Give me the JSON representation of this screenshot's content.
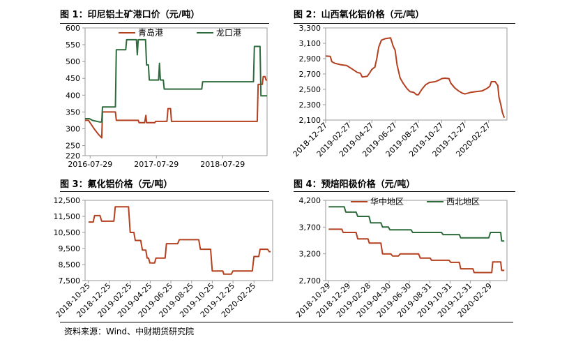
{
  "chart_data": [
    {
      "id": "fig1",
      "type": "line",
      "title_num": "图 1：",
      "title": "印尼铝土矿港口价（元/吨）",
      "ylim": [
        220,
        600
      ],
      "yticks": [
        220,
        250,
        300,
        350,
        400,
        450,
        500,
        550,
        600
      ],
      "ytick_labels": [
        "220",
        "250",
        "300",
        "350",
        "400",
        "450",
        "500",
        "550",
        "600"
      ],
      "xlim": [
        "2016-07-01",
        "2019-03-31"
      ],
      "x_tick_labels": [
        "2016-07-29",
        "2017-07-29",
        "2018-07-29"
      ],
      "x_tick_values": [
        "2016-07-29",
        "2017-07-29",
        "2018-07-29"
      ],
      "series": [
        {
          "name": "青岛港",
          "color": "#b3401f",
          "points": [
            [
              "2016-07-01",
              325
            ],
            [
              "2016-07-20",
              325
            ],
            [
              "2016-08-20",
              300
            ],
            [
              "2016-09-10",
              285
            ],
            [
              "2016-10-01",
              273
            ],
            [
              "2016-10-05",
              350
            ],
            [
              "2016-12-15",
              350
            ],
            [
              "2016-12-20",
              325
            ],
            [
              "2017-04-20",
              325
            ],
            [
              "2017-04-25",
              318
            ],
            [
              "2017-05-25",
              318
            ],
            [
              "2017-06-01",
              340
            ],
            [
              "2017-06-05",
              318
            ],
            [
              "2017-07-20",
              318
            ],
            [
              "2017-07-25",
              322
            ],
            [
              "2017-09-25",
              322
            ],
            [
              "2017-10-01",
              360
            ],
            [
              "2017-10-15",
              360
            ],
            [
              "2017-10-20",
              322
            ],
            [
              "2019-02-05",
              322
            ],
            [
              "2019-02-10",
              432
            ],
            [
              "2019-03-05",
              432
            ],
            [
              "2019-03-10",
              455
            ],
            [
              "2019-03-20",
              455
            ],
            [
              "2019-03-25",
              445
            ],
            [
              "2019-03-31",
              445
            ]
          ]
        },
        {
          "name": "龙口港",
          "color": "#2e6b3c",
          "points": [
            [
              "2016-07-01",
              330
            ],
            [
              "2016-07-25",
              330
            ],
            [
              "2016-08-10",
              325
            ],
            [
              "2016-09-20",
              320
            ],
            [
              "2016-10-01",
              320
            ],
            [
              "2016-10-05",
              365
            ],
            [
              "2016-12-15",
              365
            ],
            [
              "2016-12-20",
              535
            ],
            [
              "2017-02-10",
              535
            ],
            [
              "2017-02-15",
              565
            ],
            [
              "2017-04-10",
              565
            ],
            [
              "2017-04-15",
              520
            ],
            [
              "2017-04-20",
              565
            ],
            [
              "2017-05-30",
              565
            ],
            [
              "2017-06-05",
              490
            ],
            [
              "2017-06-15",
              490
            ],
            [
              "2017-06-20",
              445
            ],
            [
              "2017-08-10",
              445
            ],
            [
              "2017-08-15",
              495
            ],
            [
              "2017-08-20",
              445
            ],
            [
              "2017-09-05",
              445
            ],
            [
              "2017-09-10",
              418
            ],
            [
              "2018-04-05",
              418
            ],
            [
              "2018-04-10",
              440
            ],
            [
              "2019-01-15",
              440
            ],
            [
              "2019-01-20",
              545
            ],
            [
              "2019-02-20",
              545
            ],
            [
              "2019-02-25",
              398
            ],
            [
              "2019-03-31",
              398
            ]
          ]
        }
      ]
    },
    {
      "id": "fig2",
      "type": "line",
      "title_num": "图 2：",
      "title": "山西氧化铝价格（元/吨）",
      "ylim": [
        2100,
        3300
      ],
      "yticks": [
        2100,
        2300,
        2500,
        2700,
        2900,
        3100,
        3300
      ],
      "ytick_labels": [
        "2,100",
        "2,300",
        "2,500",
        "2,700",
        "2,900",
        "3,100",
        "3,300"
      ],
      "xlim": [
        "2018-12-27",
        "2020-04-15"
      ],
      "x_tick_labels": [
        "2018-12-27",
        "2019-02-27",
        "2019-04-27",
        "2019-06-27",
        "2019-08-27",
        "2019-10-27",
        "2019-12-27",
        "2020-02-27"
      ],
      "x_tick_values": [
        "2018-12-27",
        "2019-02-27",
        "2019-04-27",
        "2019-06-27",
        "2019-08-27",
        "2019-10-27",
        "2019-12-27",
        "2020-02-27"
      ],
      "series": [
        {
          "name": "",
          "color": "#b3401f",
          "points": [
            [
              "2018-12-27",
              2935
            ],
            [
              "2019-01-08",
              2930
            ],
            [
              "2019-01-12",
              2860
            ],
            [
              "2019-01-20",
              2840
            ],
            [
              "2019-02-05",
              2820
            ],
            [
              "2019-02-20",
              2810
            ],
            [
              "2019-03-05",
              2770
            ],
            [
              "2019-03-20",
              2720
            ],
            [
              "2019-03-28",
              2710
            ],
            [
              "2019-04-02",
              2660
            ],
            [
              "2019-04-15",
              2670
            ],
            [
              "2019-04-22",
              2720
            ],
            [
              "2019-04-27",
              2760
            ],
            [
              "2019-05-05",
              2790
            ],
            [
              "2019-05-10",
              2900
            ],
            [
              "2019-05-15",
              3050
            ],
            [
              "2019-05-22",
              3140
            ],
            [
              "2019-06-01",
              3160
            ],
            [
              "2019-06-15",
              3170
            ],
            [
              "2019-06-22",
              3060
            ],
            [
              "2019-06-27",
              3010
            ],
            [
              "2019-07-02",
              2820
            ],
            [
              "2019-07-10",
              2650
            ],
            [
              "2019-07-18",
              2580
            ],
            [
              "2019-07-28",
              2510
            ],
            [
              "2019-08-05",
              2470
            ],
            [
              "2019-08-15",
              2460
            ],
            [
              "2019-08-22",
              2430
            ],
            [
              "2019-08-27",
              2430
            ],
            [
              "2019-09-05",
              2500
            ],
            [
              "2019-09-15",
              2560
            ],
            [
              "2019-09-25",
              2590
            ],
            [
              "2019-10-10",
              2600
            ],
            [
              "2019-10-20",
              2620
            ],
            [
              "2019-10-27",
              2640
            ],
            [
              "2019-11-05",
              2645
            ],
            [
              "2019-11-15",
              2640
            ],
            [
              "2019-11-20",
              2580
            ],
            [
              "2019-11-30",
              2520
            ],
            [
              "2019-12-10",
              2480
            ],
            [
              "2019-12-20",
              2450
            ],
            [
              "2019-12-27",
              2440
            ],
            [
              "2020-01-10",
              2460
            ],
            [
              "2020-01-25",
              2470
            ],
            [
              "2020-02-10",
              2480
            ],
            [
              "2020-02-22",
              2510
            ],
            [
              "2020-03-01",
              2540
            ],
            [
              "2020-03-05",
              2600
            ],
            [
              "2020-03-15",
              2600
            ],
            [
              "2020-03-22",
              2550
            ],
            [
              "2020-03-25",
              2400
            ],
            [
              "2020-03-30",
              2300
            ],
            [
              "2020-04-03",
              2200
            ],
            [
              "2020-04-08",
              2130
            ]
          ]
        }
      ]
    },
    {
      "id": "fig3",
      "type": "line",
      "title_num": "图 3：",
      "title": "氟化铝价格（元/吨）",
      "ylim": [
        7500,
        12500
      ],
      "yticks": [
        7500,
        8500,
        9500,
        10500,
        11500,
        12500
      ],
      "ytick_labels": [
        "7,500",
        "8,500",
        "9,500",
        "10,500",
        "11,500",
        "12,500"
      ],
      "xlim": [
        "2018-10-15",
        "2020-04-20"
      ],
      "x_tick_labels": [
        "2018-10-25",
        "2018-12-25",
        "2019-02-25",
        "2019-04-25",
        "2019-06-25",
        "2019-08-25",
        "2019-10-25",
        "2019-12-25",
        "2020-02-25"
      ],
      "x_tick_values": [
        "2018-10-25",
        "2018-12-25",
        "2019-02-25",
        "2019-04-25",
        "2019-06-25",
        "2019-08-25",
        "2019-10-25",
        "2019-12-25",
        "2020-02-25"
      ],
      "series": [
        {
          "name": "",
          "color": "#b3401f",
          "points": [
            [
              "2018-10-25",
              11150
            ],
            [
              "2018-11-08",
              11150
            ],
            [
              "2018-11-12",
              11550
            ],
            [
              "2018-11-28",
              11550
            ],
            [
              "2018-12-03",
              11200
            ],
            [
              "2019-01-08",
              11200
            ],
            [
              "2019-01-12",
              12100
            ],
            [
              "2019-02-20",
              12100
            ],
            [
              "2019-02-25",
              10500
            ],
            [
              "2019-03-08",
              10500
            ],
            [
              "2019-03-12",
              10000
            ],
            [
              "2019-03-28",
              10000
            ],
            [
              "2019-04-02",
              9400
            ],
            [
              "2019-04-12",
              9400
            ],
            [
              "2019-04-16",
              8900
            ],
            [
              "2019-04-20",
              8900
            ],
            [
              "2019-04-24",
              8600
            ],
            [
              "2019-05-08",
              8600
            ],
            [
              "2019-05-12",
              8900
            ],
            [
              "2019-06-08",
              8900
            ],
            [
              "2019-06-12",
              9800
            ],
            [
              "2019-07-15",
              9800
            ],
            [
              "2019-07-20",
              10050
            ],
            [
              "2019-09-15",
              10050
            ],
            [
              "2019-09-20",
              9450
            ],
            [
              "2019-10-20",
              9450
            ],
            [
              "2019-10-25",
              8100
            ],
            [
              "2019-11-25",
              8100
            ],
            [
              "2019-11-28",
              7900
            ],
            [
              "2019-12-20",
              7900
            ],
            [
              "2019-12-25",
              8100
            ],
            [
              "2020-02-20",
              8100
            ],
            [
              "2020-02-25",
              9000
            ],
            [
              "2020-03-10",
              9000
            ],
            [
              "2020-03-14",
              9450
            ],
            [
              "2020-04-05",
              9450
            ],
            [
              "2020-04-10",
              9300
            ],
            [
              "2020-04-14",
              9300
            ]
          ]
        }
      ]
    },
    {
      "id": "fig4",
      "type": "line",
      "title_num": "图 4：",
      "title": "预焙阳极价格（元/吨）",
      "ylim": [
        2700,
        4200
      ],
      "yticks": [
        2700,
        3200,
        3700,
        4200
      ],
      "ytick_labels": [
        "2,700",
        "3,200",
        "3,700",
        "4,200"
      ],
      "xlim": [
        "2018-10-20",
        "2020-04-20"
      ],
      "x_tick_labels": [
        "2018-10-29",
        "2018-12-29",
        "2019-02-28",
        "2019-04-30",
        "2019-06-30",
        "2019-08-31",
        "2019-10-31",
        "2019-12-31",
        "2020-02-29"
      ],
      "x_tick_values": [
        "2018-10-29",
        "2018-12-29",
        "2019-02-28",
        "2019-04-30",
        "2019-06-30",
        "2019-08-31",
        "2019-10-31",
        "2019-12-31",
        "2020-02-29"
      ],
      "series": [
        {
          "name": "华中地区",
          "color": "#b3401f",
          "points": [
            [
              "2018-10-29",
              3660
            ],
            [
              "2018-12-08",
              3660
            ],
            [
              "2018-12-12",
              3600
            ],
            [
              "2019-01-20",
              3600
            ],
            [
              "2019-01-25",
              3480
            ],
            [
              "2019-02-25",
              3480
            ],
            [
              "2019-03-01",
              3400
            ],
            [
              "2019-04-05",
              3400
            ],
            [
              "2019-04-10",
              3200
            ],
            [
              "2019-05-05",
              3200
            ],
            [
              "2019-05-10",
              3160
            ],
            [
              "2019-05-28",
              3160
            ],
            [
              "2019-06-02",
              3200
            ],
            [
              "2019-07-28",
              3200
            ],
            [
              "2019-08-02",
              3120
            ],
            [
              "2019-09-01",
              3120
            ],
            [
              "2019-09-05",
              3080
            ],
            [
              "2019-10-28",
              3080
            ],
            [
              "2019-11-02",
              3040
            ],
            [
              "2019-11-28",
              3040
            ],
            [
              "2019-12-02",
              2920
            ],
            [
              "2020-01-08",
              2920
            ],
            [
              "2020-01-12",
              2850
            ],
            [
              "2020-03-05",
              2850
            ],
            [
              "2020-03-08",
              3050
            ],
            [
              "2020-04-01",
              3050
            ],
            [
              "2020-04-04",
              2890
            ],
            [
              "2020-04-12",
              2890
            ]
          ]
        },
        {
          "name": "西北地区",
          "color": "#2e6b3c",
          "points": [
            [
              "2018-10-29",
              4080
            ],
            [
              "2018-12-15",
              4080
            ],
            [
              "2018-12-20",
              3980
            ],
            [
              "2019-01-20",
              3980
            ],
            [
              "2019-01-25",
              3900
            ],
            [
              "2019-02-28",
              3900
            ],
            [
              "2019-03-05",
              3780
            ],
            [
              "2019-04-05",
              3780
            ],
            [
              "2019-04-10",
              3700
            ],
            [
              "2019-04-28",
              3700
            ],
            [
              "2019-05-02",
              3650
            ],
            [
              "2019-07-05",
              3650
            ],
            [
              "2019-07-10",
              3600
            ],
            [
              "2019-10-05",
              3600
            ],
            [
              "2019-10-10",
              3560
            ],
            [
              "2019-11-28",
              3560
            ],
            [
              "2019-12-02",
              3500
            ],
            [
              "2020-02-25",
              3500
            ],
            [
              "2020-03-01",
              3600
            ],
            [
              "2020-04-01",
              3600
            ],
            [
              "2020-04-04",
              3440
            ],
            [
              "2020-04-12",
              3440
            ]
          ]
        }
      ]
    }
  ],
  "source_text": "资料来源：Wind、中财期货研究院"
}
